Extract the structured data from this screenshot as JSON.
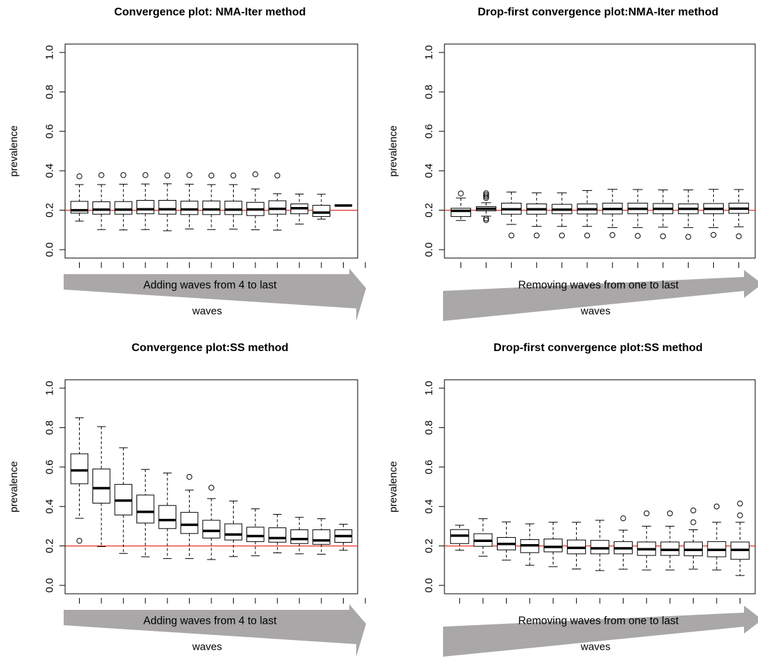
{
  "colors": {
    "reference_line": "#e8322a",
    "arrow": "#a9a7a7",
    "box": "#000000"
  },
  "chart_data": [
    {
      "type": "boxplot",
      "title": "Convergence plot: NMA-Iter method",
      "xlabel": "waves",
      "ylabel": "prevalence",
      "ylim": [
        0,
        1
      ],
      "yticks": [
        "0.0",
        "0.2",
        "0.4",
        "0.6",
        "0.8",
        "1.0"
      ],
      "reference_line": 0.2,
      "arrow_label": "Adding waves from 4 to last",
      "arrow_direction": "widening",
      "boxes": [
        {
          "low": 0.145,
          "q1": 0.185,
          "median": 0.2,
          "q3": 0.245,
          "high": 0.33,
          "outliers": [
            0.372
          ]
        },
        {
          "low": 0.102,
          "q1": 0.18,
          "median": 0.203,
          "q3": 0.243,
          "high": 0.33,
          "outliers": [
            0.378
          ]
        },
        {
          "low": 0.1,
          "q1": 0.18,
          "median": 0.203,
          "q3": 0.244,
          "high": 0.332,
          "outliers": [
            0.378
          ]
        },
        {
          "low": 0.102,
          "q1": 0.182,
          "median": 0.205,
          "q3": 0.25,
          "high": 0.333,
          "outliers": [
            0.378
          ]
        },
        {
          "low": 0.096,
          "q1": 0.18,
          "median": 0.205,
          "q3": 0.25,
          "high": 0.334,
          "outliers": [
            0.376
          ]
        },
        {
          "low": 0.105,
          "q1": 0.178,
          "median": 0.204,
          "q3": 0.246,
          "high": 0.332,
          "outliers": [
            0.378
          ]
        },
        {
          "low": 0.102,
          "q1": 0.178,
          "median": 0.204,
          "q3": 0.247,
          "high": 0.33,
          "outliers": [
            0.376
          ]
        },
        {
          "low": 0.104,
          "q1": 0.178,
          "median": 0.203,
          "q3": 0.246,
          "high": 0.33,
          "outliers": [
            0.376
          ]
        },
        {
          "low": 0.101,
          "q1": 0.173,
          "median": 0.204,
          "q3": 0.24,
          "high": 0.308,
          "outliers": [
            0.382
          ]
        },
        {
          "low": 0.099,
          "q1": 0.18,
          "median": 0.207,
          "q3": 0.248,
          "high": 0.284,
          "outliers": [
            0.376
          ]
        },
        {
          "low": 0.13,
          "q1": 0.182,
          "median": 0.21,
          "q3": 0.232,
          "high": 0.282,
          "outliers": []
        },
        {
          "low": 0.155,
          "q1": 0.168,
          "median": 0.188,
          "q3": 0.225,
          "high": 0.281,
          "outliers": []
        },
        {
          "low": 0.224,
          "q1": 0.224,
          "median": 0.224,
          "q3": 0.226,
          "high": 0.226,
          "outliers": []
        }
      ]
    },
    {
      "type": "boxplot",
      "title": "Drop-first convergence plot:NMA-Iter method",
      "xlabel": "waves",
      "ylabel": "prevalence",
      "ylim": [
        0,
        1
      ],
      "yticks": [
        "0.0",
        "0.2",
        "0.4",
        "0.6",
        "0.8",
        "1.0"
      ],
      "reference_line": 0.2,
      "arrow_label": "Removing waves from one to last",
      "arrow_direction": "narrowing",
      "boxes": [
        {
          "low": 0.148,
          "q1": 0.168,
          "median": 0.197,
          "q3": 0.21,
          "high": 0.262,
          "outliers": [
            0.285
          ]
        },
        {
          "low": 0.17,
          "q1": 0.197,
          "median": 0.207,
          "q3": 0.218,
          "high": 0.238,
          "outliers": [
            0.15,
            0.158,
            0.262,
            0.27,
            0.278,
            0.286
          ]
        },
        {
          "low": 0.128,
          "q1": 0.18,
          "median": 0.205,
          "q3": 0.236,
          "high": 0.292,
          "outliers": [
            0.072
          ]
        },
        {
          "low": 0.118,
          "q1": 0.18,
          "median": 0.205,
          "q3": 0.232,
          "high": 0.288,
          "outliers": [
            0.072
          ]
        },
        {
          "low": 0.118,
          "q1": 0.182,
          "median": 0.203,
          "q3": 0.23,
          "high": 0.288,
          "outliers": [
            0.072
          ]
        },
        {
          "low": 0.118,
          "q1": 0.181,
          "median": 0.205,
          "q3": 0.232,
          "high": 0.3,
          "outliers": [
            0.072
          ]
        },
        {
          "low": 0.112,
          "q1": 0.181,
          "median": 0.206,
          "q3": 0.236,
          "high": 0.306,
          "outliers": [
            0.074
          ]
        },
        {
          "low": 0.112,
          "q1": 0.182,
          "median": 0.207,
          "q3": 0.236,
          "high": 0.305,
          "outliers": [
            0.07
          ]
        },
        {
          "low": 0.114,
          "q1": 0.182,
          "median": 0.207,
          "q3": 0.234,
          "high": 0.303,
          "outliers": [
            0.068
          ]
        },
        {
          "low": 0.112,
          "q1": 0.182,
          "median": 0.207,
          "q3": 0.232,
          "high": 0.303,
          "outliers": [
            0.065
          ]
        },
        {
          "low": 0.112,
          "q1": 0.182,
          "median": 0.207,
          "q3": 0.234,
          "high": 0.306,
          "outliers": [
            0.075
          ]
        },
        {
          "low": 0.116,
          "q1": 0.184,
          "median": 0.208,
          "q3": 0.236,
          "high": 0.305,
          "outliers": [
            0.068
          ]
        }
      ]
    },
    {
      "type": "boxplot",
      "title": "Convergence plot:SS method",
      "xlabel": "waves",
      "ylabel": "prevalence",
      "ylim": [
        0,
        1
      ],
      "yticks": [
        "0.0",
        "0.2",
        "0.4",
        "0.6",
        "0.8",
        "1.0"
      ],
      "reference_line": 0.2,
      "arrow_label": "Adding waves from 4 to last",
      "arrow_direction": "widening",
      "boxes": [
        {
          "low": 0.34,
          "q1": 0.515,
          "median": 0.583,
          "q3": 0.667,
          "high": 0.85,
          "outliers": [
            0.226
          ]
        },
        {
          "low": 0.197,
          "q1": 0.417,
          "median": 0.493,
          "q3": 0.59,
          "high": 0.805,
          "outliers": []
        },
        {
          "low": 0.162,
          "q1": 0.357,
          "median": 0.43,
          "q3": 0.512,
          "high": 0.698,
          "outliers": []
        },
        {
          "low": 0.145,
          "q1": 0.316,
          "median": 0.373,
          "q3": 0.458,
          "high": 0.588,
          "outliers": []
        },
        {
          "low": 0.136,
          "q1": 0.288,
          "median": 0.331,
          "q3": 0.405,
          "high": 0.57,
          "outliers": []
        },
        {
          "low": 0.136,
          "q1": 0.263,
          "median": 0.307,
          "q3": 0.37,
          "high": 0.483,
          "outliers": [
            0.55
          ]
        },
        {
          "low": 0.131,
          "q1": 0.24,
          "median": 0.276,
          "q3": 0.33,
          "high": 0.44,
          "outliers": [
            0.495
          ]
        },
        {
          "low": 0.146,
          "q1": 0.23,
          "median": 0.258,
          "q3": 0.312,
          "high": 0.428,
          "outliers": []
        },
        {
          "low": 0.15,
          "q1": 0.222,
          "median": 0.25,
          "q3": 0.295,
          "high": 0.388,
          "outliers": []
        },
        {
          "low": 0.165,
          "q1": 0.219,
          "median": 0.24,
          "q3": 0.292,
          "high": 0.36,
          "outliers": []
        },
        {
          "low": 0.16,
          "q1": 0.212,
          "median": 0.235,
          "q3": 0.282,
          "high": 0.345,
          "outliers": []
        },
        {
          "low": 0.158,
          "q1": 0.208,
          "median": 0.228,
          "q3": 0.282,
          "high": 0.338,
          "outliers": []
        },
        {
          "low": 0.178,
          "q1": 0.218,
          "median": 0.25,
          "q3": 0.282,
          "high": 0.31,
          "outliers": []
        }
      ]
    },
    {
      "type": "boxplot",
      "title": "Drop-first convergence plot:SS method",
      "xlabel": "waves",
      "ylabel": "prevalence",
      "ylim": [
        0,
        1
      ],
      "yticks": [
        "0.0",
        "0.2",
        "0.4",
        "0.6",
        "0.8",
        "1.0"
      ],
      "reference_line": 0.2,
      "arrow_label": "Removing waves from one to last",
      "arrow_direction": "narrowing",
      "boxes": [
        {
          "low": 0.178,
          "q1": 0.212,
          "median": 0.252,
          "q3": 0.283,
          "high": 0.305,
          "outliers": []
        },
        {
          "low": 0.148,
          "q1": 0.198,
          "median": 0.226,
          "q3": 0.262,
          "high": 0.338,
          "outliers": []
        },
        {
          "low": 0.128,
          "q1": 0.18,
          "median": 0.21,
          "q3": 0.243,
          "high": 0.322,
          "outliers": []
        },
        {
          "low": 0.102,
          "q1": 0.166,
          "median": 0.203,
          "q3": 0.232,
          "high": 0.312,
          "outliers": []
        },
        {
          "low": 0.095,
          "q1": 0.17,
          "median": 0.195,
          "q3": 0.235,
          "high": 0.32,
          "outliers": []
        },
        {
          "low": 0.083,
          "q1": 0.16,
          "median": 0.19,
          "q3": 0.23,
          "high": 0.32,
          "outliers": []
        },
        {
          "low": 0.075,
          "q1": 0.16,
          "median": 0.188,
          "q3": 0.228,
          "high": 0.33,
          "outliers": []
        },
        {
          "low": 0.082,
          "q1": 0.16,
          "median": 0.188,
          "q3": 0.222,
          "high": 0.28,
          "outliers": [
            0.34
          ]
        },
        {
          "low": 0.078,
          "q1": 0.152,
          "median": 0.183,
          "q3": 0.22,
          "high": 0.3,
          "outliers": [
            0.365
          ]
        },
        {
          "low": 0.078,
          "q1": 0.152,
          "median": 0.18,
          "q3": 0.22,
          "high": 0.3,
          "outliers": [
            0.365
          ]
        },
        {
          "low": 0.082,
          "q1": 0.15,
          "median": 0.18,
          "q3": 0.22,
          "high": 0.282,
          "outliers": [
            0.32,
            0.38
          ]
        },
        {
          "low": 0.078,
          "q1": 0.145,
          "median": 0.18,
          "q3": 0.222,
          "high": 0.32,
          "outliers": [
            0.4
          ]
        },
        {
          "low": 0.05,
          "q1": 0.132,
          "median": 0.18,
          "q3": 0.22,
          "high": 0.32,
          "outliers": [
            0.355,
            0.415
          ]
        }
      ]
    }
  ]
}
